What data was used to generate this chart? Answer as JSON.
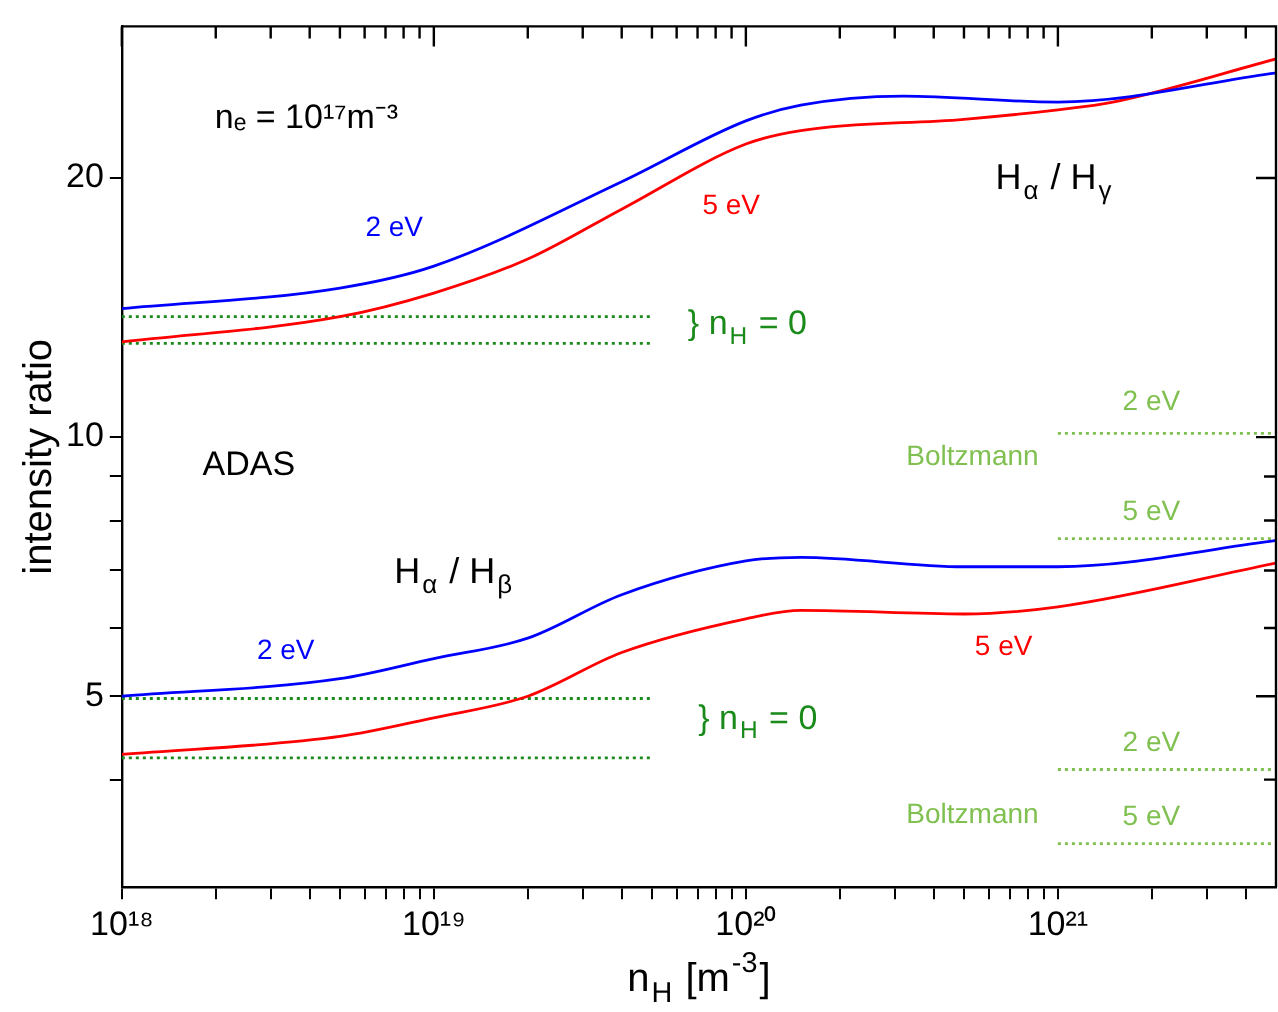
{
  "chart_data": {
    "type": "line",
    "xlabel": "n$_{H}$ [m$^{-3}$]",
    "ylabel": "intensity ratio",
    "log": "xy",
    "grid": false,
    "marker": "none",
    "line_style": "solid",
    "xlim": [
      1e+18,
      5e+21
    ],
    "ylim": [
      3,
      30
    ],
    "xticks": [
      {
        "value": 1e+18,
        "label": "10¹⁸"
      },
      {
        "value": 2e+18,
        "label": null
      },
      {
        "value": 3e+18,
        "label": null
      },
      {
        "value": 4e+18,
        "label": null
      },
      {
        "value": 5e+18,
        "label": null
      },
      {
        "value": 6e+18,
        "label": null
      },
      {
        "value": 7e+18,
        "label": null
      },
      {
        "value": 8e+18,
        "label": null
      },
      {
        "value": 9e+18,
        "label": null
      },
      {
        "value": 1e+19,
        "label": "10¹⁹"
      },
      {
        "value": 2e+19,
        "label": null
      },
      {
        "value": 3e+19,
        "label": null
      },
      {
        "value": 4e+19,
        "label": null
      },
      {
        "value": 5e+19,
        "label": null
      },
      {
        "value": 6e+19,
        "label": null
      },
      {
        "value": 7e+19,
        "label": null
      },
      {
        "value": 8e+19,
        "label": null
      },
      {
        "value": 9e+19,
        "label": null
      },
      {
        "value": 1e+20,
        "label": "10²⁰"
      },
      {
        "value": 2e+20,
        "label": null
      },
      {
        "value": 3e+20,
        "label": null
      },
      {
        "value": 4e+20,
        "label": null
      },
      {
        "value": 5e+20,
        "label": null
      },
      {
        "value": 6e+20,
        "label": null
      },
      {
        "value": 7e+20,
        "label": null
      },
      {
        "value": 8e+20,
        "label": null
      },
      {
        "value": 9e+20,
        "label": null
      },
      {
        "value": 1e+21,
        "label": "10²¹"
      },
      {
        "value": 2e+21,
        "label": null
      },
      {
        "value": 3e+21,
        "label": null
      },
      {
        "value": 4e+21,
        "label": null
      }
    ],
    "yticks": [
      {
        "value": 4,
        "label": null
      },
      5,
      {
        "value": 6,
        "label": null
      },
      {
        "value": 7,
        "label": null
      },
      {
        "value": 8,
        "label": null
      },
      {
        "value": 9,
        "label": null
      },
      10,
      20
    ],
    "series": [
      {
        "name": "2 eV",
        "color": "#0000ff",
        "x": [
          1e+18,
          5e+18,
          1e+19,
          4e+19,
          1e+20,
          1.5e+20,
          3.2e+20,
          1e+21,
          5e+21
        ],
        "values": [
          14.1,
          14.9,
          15.8,
          19.8,
          23.3,
          24.3,
          24.9,
          24.5,
          26.5
        ]
      },
      {
        "name": "5 eV",
        "color": "#ff0000",
        "x": [
          1e+18,
          5e+18,
          1e+19,
          2e+19,
          4e+19,
          1e+20,
          1.5e+20,
          5e+20,
          1e+21,
          1.5e+21,
          5e+21
        ],
        "values": [
          12.9,
          13.8,
          14.7,
          16.1,
          18.4,
          21.9,
          22.7,
          23.4,
          24.0,
          24.5,
          27.5
        ]
      },
      {
        "name": "2 eV",
        "color": "#0000ff",
        "x": [
          1e+18,
          5e+18,
          1e+19,
          2e+19,
          4e+19,
          1e+20,
          1.5e+20,
          5e+20,
          1e+21,
          5e+21
        ],
        "values": [
          5.0,
          5.24,
          5.53,
          5.84,
          6.56,
          7.18,
          7.25,
          7.07,
          7.07,
          7.58
        ]
      },
      {
        "name": "5 eV",
        "color": "#ff0000",
        "x": [
          1e+18,
          5e+18,
          1e+19,
          2e+19,
          4e+19,
          1e+20,
          1.5e+20,
          5e+20,
          1e+21,
          5e+21
        ],
        "values": [
          4.28,
          4.49,
          4.72,
          5.0,
          5.62,
          6.15,
          6.29,
          6.23,
          6.35,
          7.14
        ]
      },
      {
        "color": "#1a8a1a",
        "line_style": "dotted",
        "x": [
          1e+18,
          5e+19
        ],
        "values": [
          13.8,
          13.8
        ]
      },
      {
        "color": "#1a8a1a",
        "line_style": "dotted",
        "x": [
          1e+18,
          5e+19
        ],
        "values": [
          12.85,
          12.85
        ]
      },
      {
        "color": "#1a8a1a",
        "line_style": "dotted",
        "x": [
          1e+18,
          5e+19
        ],
        "values": [
          4.97,
          4.97
        ]
      },
      {
        "color": "#1a8a1a",
        "line_style": "dotted",
        "x": [
          1e+18,
          5e+19
        ],
        "values": [
          4.24,
          4.24
        ]
      },
      {
        "name": "2 eV",
        "color": "#80c050",
        "line_style": "dotted",
        "x": [
          1e+21,
          5e+21
        ],
        "values": [
          10.1,
          10.1
        ]
      },
      {
        "name": "5 eV",
        "color": "#80c050",
        "line_style": "dotted",
        "x": [
          1e+21,
          5e+21
        ],
        "values": [
          7.62,
          7.62
        ]
      },
      {
        "name": "2 eV",
        "color": "#80c050",
        "line_style": "dotted",
        "x": [
          1e+21,
          5e+21
        ],
        "values": [
          4.11,
          4.11
        ]
      },
      {
        "name": "5 eV",
        "color": "#80c050",
        "line_style": "dotted",
        "x": [
          1e+21,
          5e+21
        ],
        "values": [
          3.37,
          3.37
        ]
      }
    ],
    "annotations": [
      "nₑ = 10¹⁷m⁻³",
      "ADAS",
      "H$_{α}$ / H$_{γ}$",
      "} n$_{H}$ = 0",
      "Boltzmann",
      "H$_{α}$ / H$_{β}$",
      "} n$_{H}$ = 0",
      "Boltzmann"
    ]
  }
}
